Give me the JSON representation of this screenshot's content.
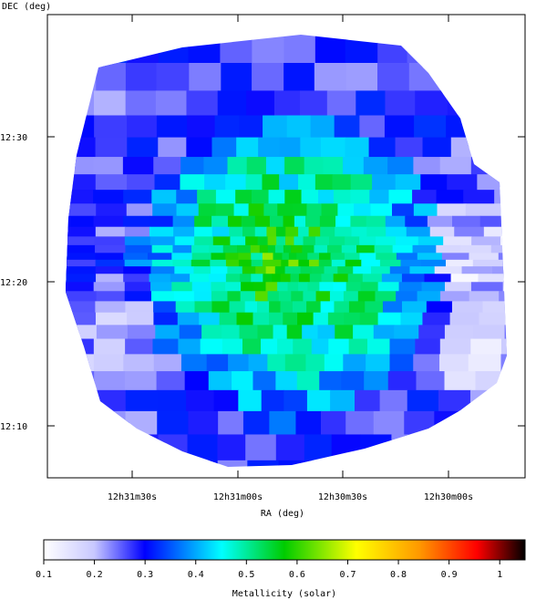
{
  "chart_data": {
    "type": "heatmap",
    "title": "",
    "xlabel": "RA (deg)",
    "ylabel": "DEC (deg)",
    "x_ticks": [
      "12h31m30s",
      "12h31m00s",
      "12h30m30s",
      "12h30m00s"
    ],
    "y_ticks": [
      "12:30",
      "12:20",
      "12:10"
    ],
    "colorbar": {
      "label": "Metallicity (solar)",
      "range": [
        0.1,
        1.05
      ],
      "ticks": [
        "0.1",
        "0.2",
        "0.3",
        "0.4",
        "0.5",
        "0.6",
        "0.7",
        "0.8",
        "0.9",
        "1"
      ],
      "tick_values": [
        0.1,
        0.2,
        0.3,
        0.4,
        0.5,
        0.6,
        0.7,
        0.8,
        0.9,
        1.0
      ],
      "colormap": [
        "#ffffff",
        "#c8c8ff",
        "#0000ff",
        "#00ffff",
        "#00cc00",
        "#ffff00",
        "#ff9900",
        "#ff0000",
        "#000000"
      ]
    },
    "map_description_values": {
      "outer_region_metallicity": 0.27,
      "center_region_metallicity": 0.6,
      "minimum": 0.1,
      "maximum": 0.75
    }
  }
}
